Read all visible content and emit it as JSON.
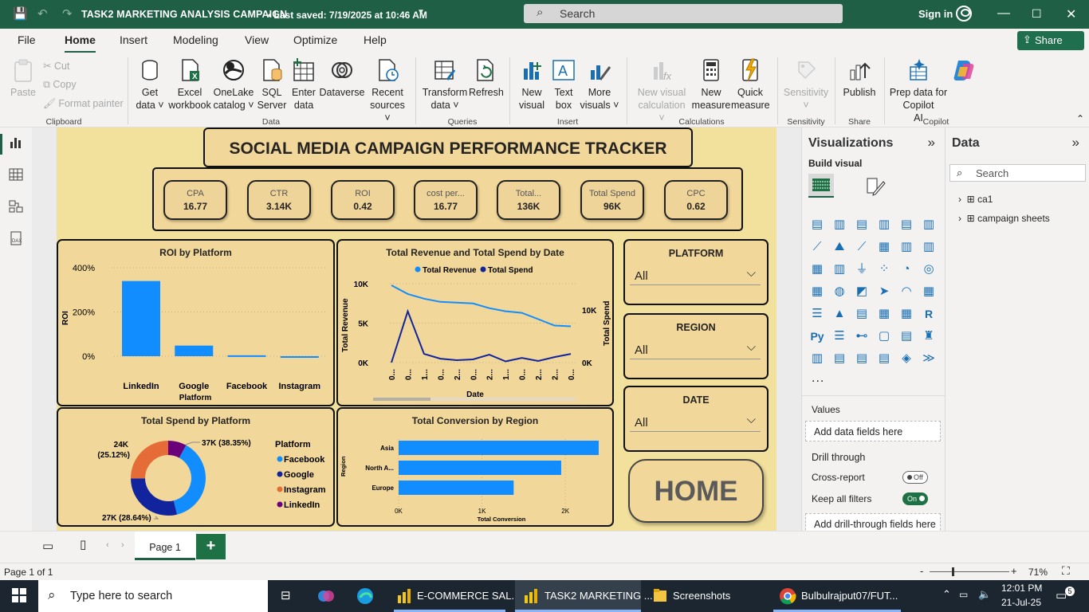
{
  "titlebar": {
    "title": "TASK2 MARKETING ANALYSIS CAMPAIGN",
    "saved": "• Last saved: 7/19/2025 at 10:46 AM",
    "search": "Search",
    "signin": "Sign in"
  },
  "menu": [
    "File",
    "Home",
    "Insert",
    "Modeling",
    "View",
    "Optimize",
    "Help"
  ],
  "share": "Share",
  "ribbon": {
    "paste": "Paste",
    "cut": "Cut",
    "copy": "Copy",
    "format_painter": "Format painter",
    "get_data": [
      "Get",
      "data ˅"
    ],
    "excel": [
      "Excel",
      "workbook"
    ],
    "onelake": [
      "OneLake",
      "catalog ˅"
    ],
    "sql": [
      "SQL",
      "Server"
    ],
    "enter": [
      "Enter",
      "data"
    ],
    "dataverse": [
      "Dataverse",
      ""
    ],
    "recent": [
      "Recent",
      "sources ˅"
    ],
    "transform": [
      "Transform",
      "data ˅"
    ],
    "refresh": [
      "Refresh",
      ""
    ],
    "new_visual": [
      "New",
      "visual"
    ],
    "text_box": [
      "Text",
      "box"
    ],
    "more_visuals": [
      "More",
      "visuals ˅"
    ],
    "new_visual_calc": [
      "New visual",
      "calculation ˅"
    ],
    "new_measure": [
      "New",
      "measure"
    ],
    "quick_measure": [
      "Quick",
      "measure"
    ],
    "sensitivity": [
      "Sensitivity",
      "˅"
    ],
    "publish": [
      "Publish",
      ""
    ],
    "copilot": [
      "Prep data for Copilot",
      "AI"
    ],
    "groups": {
      "clipboard": "Clipboard",
      "data": "Data",
      "queries": "Queries",
      "insert": "Insert",
      "calculations": "Calculations",
      "sensitivity": "Sensitivity",
      "share": "Share",
      "copilot": "Copilot"
    }
  },
  "report": {
    "title": "SOCIAL MEDIA CAMPAIGN PERFORMANCE TRACKER",
    "kpis": [
      {
        "label": "CPA",
        "value": "16.77"
      },
      {
        "label": "CTR",
        "value": "3.14K"
      },
      {
        "label": "ROI",
        "value": "0.42"
      },
      {
        "label": "cost per...",
        "value": "16.77"
      },
      {
        "label": "Total...",
        "value": "136K"
      },
      {
        "label": "Total Spend",
        "value": "96K"
      },
      {
        "label": "CPC",
        "value": "0.62"
      }
    ],
    "slicers": [
      {
        "title": "PLATFORM",
        "value": "All"
      },
      {
        "title": "REGION",
        "value": "All"
      },
      {
        "title": "DATE",
        "value": "All"
      }
    ],
    "home": "HOME"
  },
  "chart_data": [
    {
      "type": "bar",
      "title": "ROI by Platform",
      "xlabel": "Platform",
      "ylabel": "ROI",
      "categories": [
        "LinkedIn",
        "Google",
        "Facebook",
        "Instagram"
      ],
      "values": [
        340,
        48,
        4,
        -6
      ],
      "yticks": [
        "400%",
        "200%",
        "0%"
      ],
      "ylim": [
        -20,
        420
      ],
      "color": "#118dff"
    },
    {
      "type": "line",
      "title": "Total Revenue and Total Spend by Date",
      "xlabel": "Date",
      "ylabel": "Total Revenue",
      "ylabel2": "Total Spend",
      "x": [
        "0...",
        "0...",
        "1...",
        "0...",
        "2...",
        "0...",
        "2...",
        "1...",
        "0...",
        "2...",
        "2...",
        "0..."
      ],
      "yticks": [
        "10K",
        "5K",
        "0K"
      ],
      "ylim": [
        0,
        10000
      ],
      "yticks2": [
        "10K",
        "0K"
      ],
      "series": [
        {
          "name": "Total Revenue",
          "color": "#118dff",
          "values": [
            9800,
            8700,
            8100,
            7700,
            7600,
            7500,
            6900,
            6500,
            6300,
            5500,
            4700,
            4600
          ]
        },
        {
          "name": "Total Spend",
          "color": "#12239e",
          "values": [
            0,
            6500,
            1100,
            500,
            300,
            400,
            1000,
            150,
            600,
            200,
            700,
            1100
          ]
        }
      ]
    },
    {
      "type": "pie",
      "title": "Total Spend by Platform",
      "legend_title": "Platform",
      "slices": [
        {
          "name": "Facebook",
          "value": 37,
          "pct": 38.35,
          "label": "37K (38.35%)",
          "color": "#118dff"
        },
        {
          "name": "Google",
          "value": 27,
          "pct": 28.64,
          "label": "27K (28.64%)",
          "color": "#12239e"
        },
        {
          "name": "Instagram",
          "value": 24,
          "pct": 25.12,
          "label": "24K",
          "label2": "(25.12%)",
          "color": "#e66c37"
        },
        {
          "name": "LinkedIn",
          "value": 8,
          "pct": 7.89,
          "label": "",
          "color": "#6b007b"
        }
      ]
    },
    {
      "type": "bar",
      "orientation": "horizontal",
      "title": "Total Conversion by Region",
      "xlabel": "Total Conversion",
      "ylabel": "Region",
      "categories": [
        "Asia",
        "North A...",
        "Europe"
      ],
      "values": [
        2400,
        1950,
        1380
      ],
      "xticks": [
        "0K",
        "1K",
        "2K"
      ],
      "xlim": [
        0,
        2400
      ],
      "color": "#118dff"
    }
  ],
  "viz_pane": {
    "title": "Visualizations",
    "build": "Build visual",
    "values": "Values",
    "add_data": "Add data fields here",
    "drill": "Drill through",
    "cross_report": "Cross-report",
    "cross_state": "Off",
    "keep_filters": "Keep all filters",
    "keep_state": "On",
    "add_drill": "Add drill-through fields here",
    "more": "..."
  },
  "data_pane": {
    "title": "Data",
    "search": "Search",
    "tables": [
      "ca1",
      "campaign sheets"
    ]
  },
  "bottom": {
    "page_tab": "Page 1",
    "page_status": "Page 1 of 1",
    "zoom": "71%"
  },
  "taskbar": {
    "search": "Type here to search",
    "items": [
      "E-COMMERCE SAL...",
      "TASK2 MARKETING ...",
      "Screenshots",
      "Bulbulrajput07/FUT..."
    ],
    "time": "12:01 PM",
    "date": "21-Jul-25",
    "notif": "5"
  }
}
